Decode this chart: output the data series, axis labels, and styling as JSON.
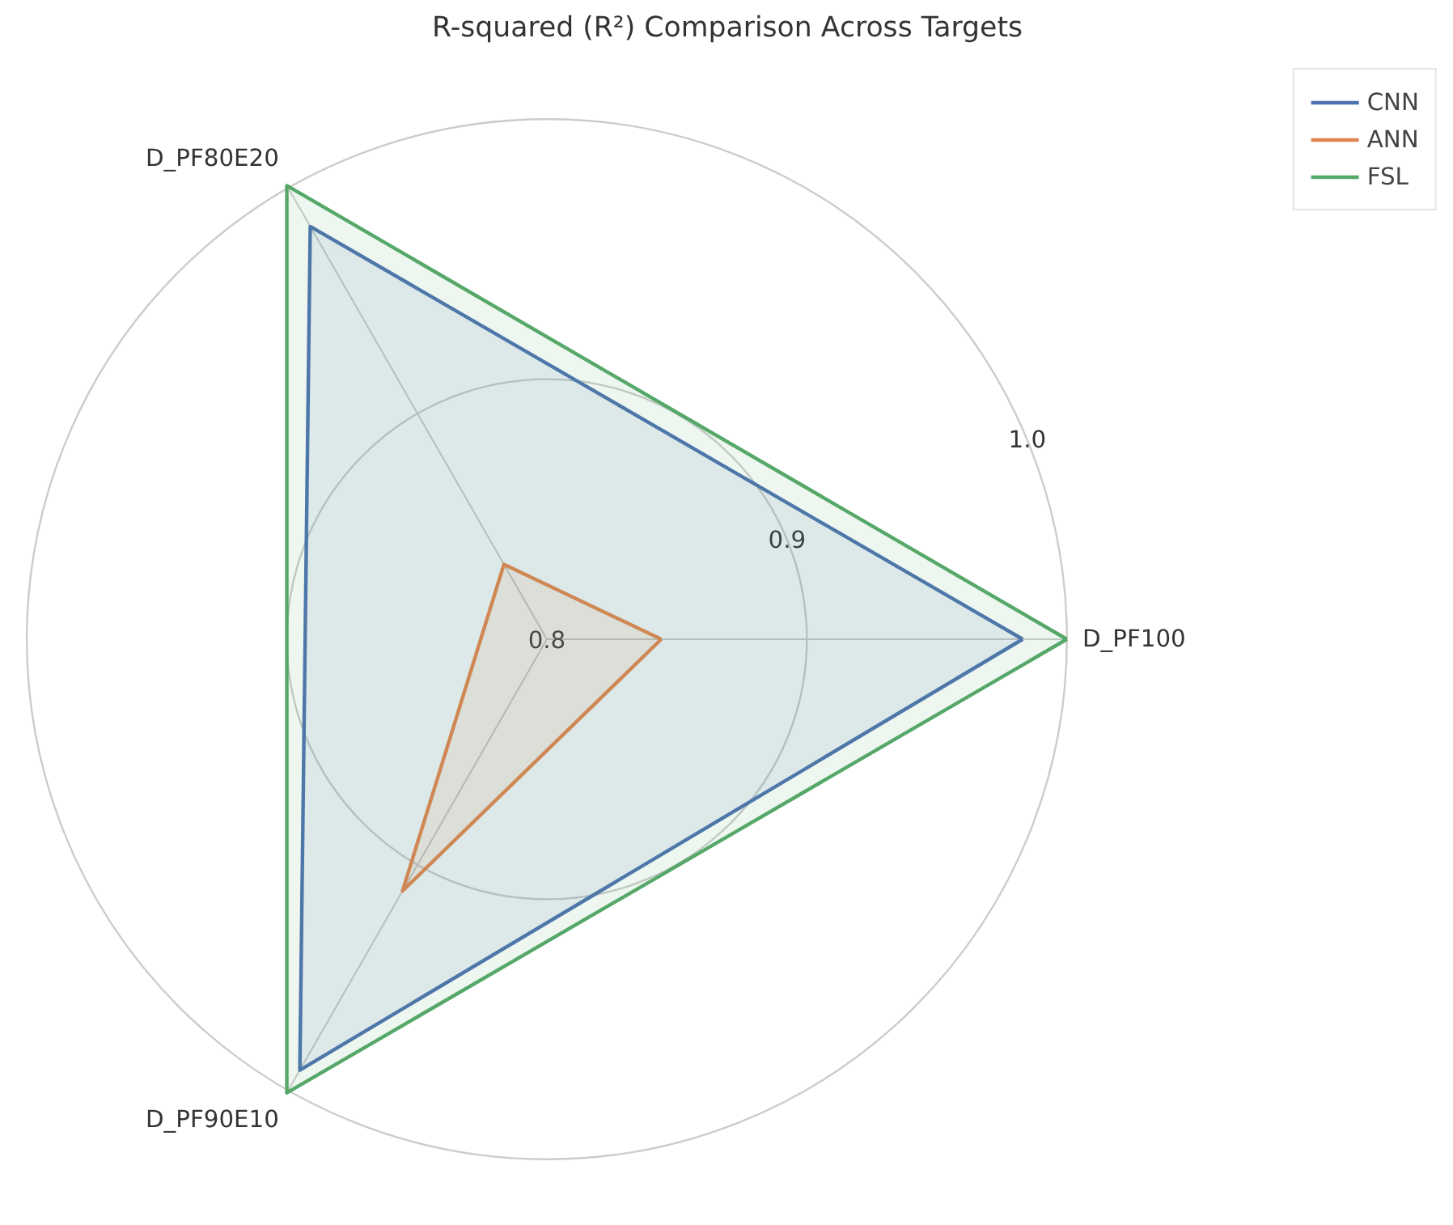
{
  "chart_data": {
    "type": "radar",
    "title": "R-squared (R²) Comparison Across Targets",
    "categories": [
      "D_PF100",
      "D_PF90E10",
      "D_PF80E20"
    ],
    "series": [
      {
        "name": "CNN",
        "color": "#4c72b0",
        "values": [
          0.983,
          0.99,
          0.982
        ]
      },
      {
        "name": "ANN",
        "color": "#dd8452",
        "values": [
          0.844,
          0.911,
          0.833
        ]
      },
      {
        "name": "FSL",
        "color": "#55a868",
        "values": [
          1.0,
          1.0,
          1.0
        ]
      }
    ],
    "ylim": [
      0.8,
      1.0
    ],
    "yticks": [
      0.8,
      0.9,
      {
        "value": 1,
        "label": "1.0"
      }
    ],
    "grid": true,
    "legend": "top right"
  }
}
